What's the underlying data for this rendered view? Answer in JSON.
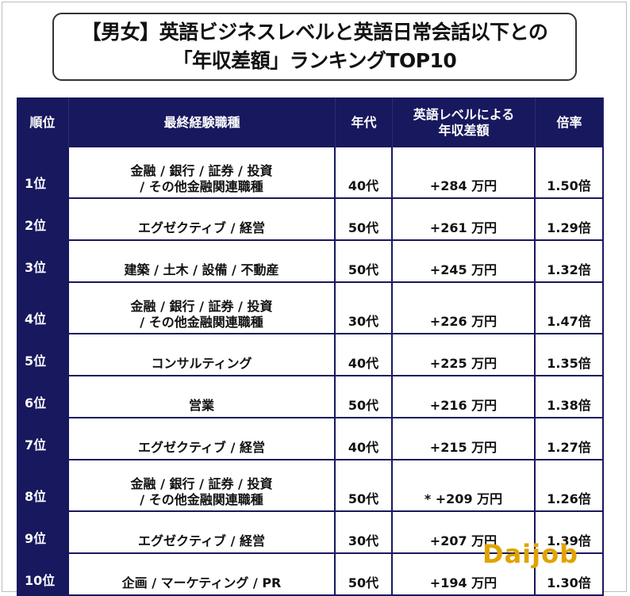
{
  "title": {
    "line1": "【男女】英語ビジネスレベルと英語日常会話以下との",
    "line2": "「年収差額」ランキングTOP10"
  },
  "headers": {
    "rank": "順位",
    "job": "最終経験職種",
    "age": "年代",
    "diff_line1": "英語レベルによる",
    "diff_line2": "年収差額",
    "ratio": "倍率"
  },
  "rows": [
    {
      "rank": "1位",
      "job_line1": "金融 / 銀行 / 証券 / 投資",
      "job_line2": "/ その他金融関連職種",
      "age": "40代",
      "diff": "+284 万円",
      "ratio": "1.50倍"
    },
    {
      "rank": "2位",
      "job_line1": "エグゼクティブ / 経営",
      "job_line2": "",
      "age": "50代",
      "diff": "+261 万円",
      "ratio": "1.29倍"
    },
    {
      "rank": "3位",
      "job_line1": "建築 / 土木 / 設備 / 不動産",
      "job_line2": "",
      "age": "50代",
      "diff": "+245 万円",
      "ratio": "1.32倍"
    },
    {
      "rank": "4位",
      "job_line1": "金融 / 銀行 / 証券 / 投資",
      "job_line2": "/ その他金融関連職種",
      "age": "30代",
      "diff": "+226 万円",
      "ratio": "1.47倍"
    },
    {
      "rank": "5位",
      "job_line1": "コンサルティング",
      "job_line2": "",
      "age": "40代",
      "diff": "+225 万円",
      "ratio": "1.35倍"
    },
    {
      "rank": "6位",
      "job_line1": "営業",
      "job_line2": "",
      "age": "50代",
      "diff": "+216 万円",
      "ratio": "1.38倍"
    },
    {
      "rank": "7位",
      "job_line1": "エグゼクティブ / 経営",
      "job_line2": "",
      "age": "40代",
      "diff": "+215 万円",
      "ratio": "1.27倍"
    },
    {
      "rank": "8位",
      "job_line1": "金融 / 銀行 / 証券 / 投資",
      "job_line2": "/ その他金融関連職種",
      "age": "50代",
      "diff": "* +209 万円",
      "ratio": "1.26倍"
    },
    {
      "rank": "9位",
      "job_line1": "エグゼクティブ / 経営",
      "job_line2": "",
      "age": "30代",
      "diff": "+207 万円",
      "ratio": "1.39倍"
    },
    {
      "rank": "10位",
      "job_line1": "企画 / マーケティング / PR",
      "job_line2": "",
      "age": "50代",
      "diff": "+194 万円",
      "ratio": "1.30倍"
    }
  ],
  "logo": "Daijob"
}
